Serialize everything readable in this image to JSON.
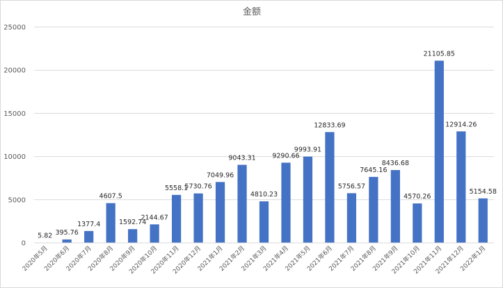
{
  "chart_data": {
    "type": "bar",
    "title": "金额",
    "xlabel": "",
    "ylabel": "",
    "ylim": [
      0,
      25000
    ],
    "yticks": [
      0,
      5000,
      10000,
      15000,
      20000,
      25000
    ],
    "grid": true,
    "legend": "none",
    "bar_color": "#4472c4",
    "categories": [
      "2020年5月",
      "2020年6月",
      "2020年7月",
      "2020年8月",
      "2020年9月",
      "2020年10月",
      "2020年11月",
      "2020年12月",
      "2021年1月",
      "2021年2月",
      "2021年3月",
      "2021年4月",
      "2021年5月",
      "2021年6月",
      "2021年7月",
      "2021年8月",
      "2021年9月",
      "2021年10月",
      "2021年11月",
      "2021年12月",
      "2022年1月"
    ],
    "values": [
      5.82,
      395.76,
      1377.4,
      4607.5,
      1592.74,
      2144.67,
      5558.1,
      5730.76,
      7049.96,
      9043.31,
      4810.23,
      9290.66,
      9993.91,
      12833.69,
      5756.57,
      7645.16,
      8436.68,
      4570.26,
      21105.85,
      12914.26,
      5154.58
    ],
    "data_labels": [
      "5.82",
      "395.76",
      "1377.4",
      "4607.5",
      "1592.74",
      "2144.67",
      "5558.1",
      "5730.76",
      "7049.96",
      "9043.31",
      "4810.23",
      "9290.66",
      "9993.91",
      "12833.69",
      "5756.57",
      "7645.16",
      "8436.68",
      "4570.26",
      "21105.85",
      "12914.26",
      "5154.58"
    ]
  }
}
